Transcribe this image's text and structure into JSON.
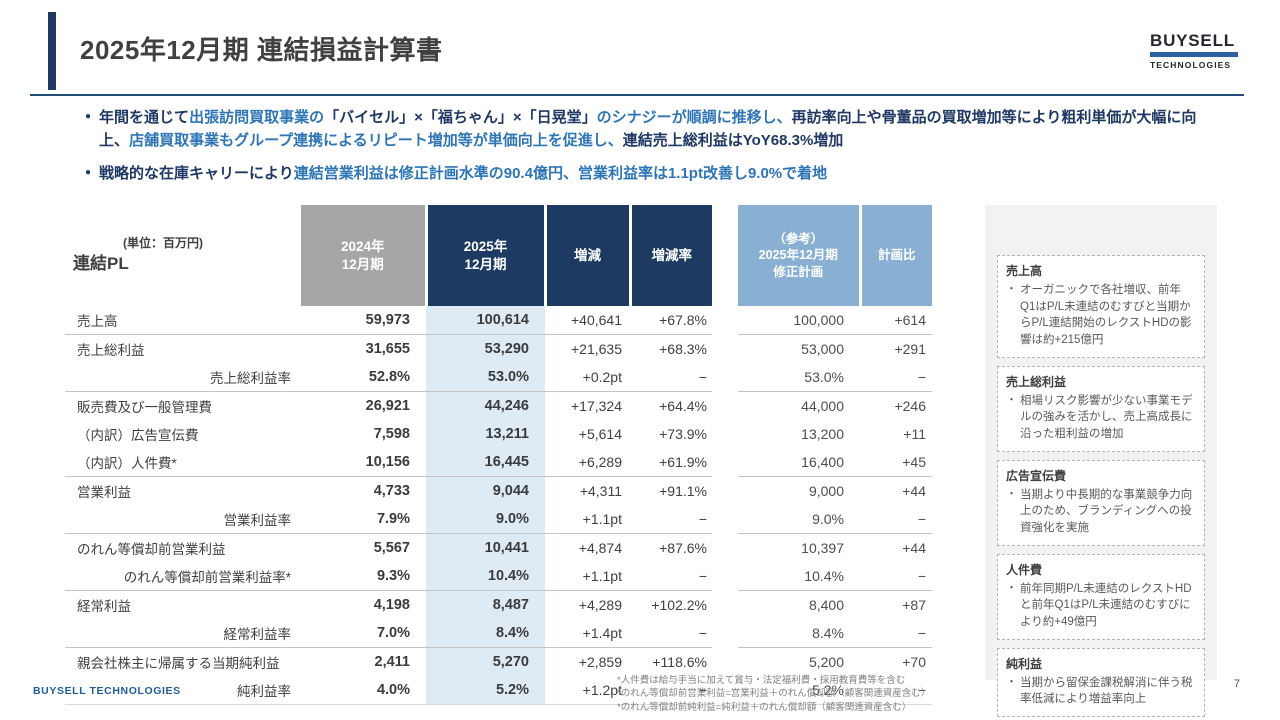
{
  "page": {
    "title": "2025年12月期 連結損益計算書",
    "footer_brand": "BUYSELL TECHNOLOGIES",
    "page_number": "7"
  },
  "logo": {
    "line1": "BUYSELL",
    "line2": "TECHNOLOGIES"
  },
  "bullets": [
    {
      "segments": [
        {
          "t": "年間を通じて",
          "c": "navy"
        },
        {
          "t": "出張訪問買取事業の",
          "c": "blue"
        },
        {
          "t": "「バイセル」×「福ちゃん」×「日晃堂」",
          "c": "navy"
        },
        {
          "t": "のシナジーが順調に推移し、",
          "c": "blue"
        },
        {
          "t": "再訪率向上や骨董品の買取増加等により粗利単価が大幅に向上、",
          "c": "navy"
        },
        {
          "t": "店舗買取事業もグループ連携によるリピート増加等が単価向上を促進し、",
          "c": "blue"
        },
        {
          "t": "連結売上総利益はYoY68.3%増加",
          "c": "navy"
        }
      ]
    },
    {
      "segments": [
        {
          "t": "戦略的な在庫キャリーにより",
          "c": "navy"
        },
        {
          "t": "連結営業利益は修正計画水準の90.4億円、営業利益率は1.1pt改善し9.0%で着地",
          "c": "blue"
        }
      ]
    }
  ],
  "table": {
    "unit_label": "(単位：百万円)",
    "title": "連結PL",
    "columns": [
      "2024年\n12月期",
      "2025年\n12月期",
      "増減",
      "増減率",
      "（参考）\n2025年12月期\n修正計画",
      "計画比"
    ],
    "rows": [
      {
        "label": "売上高",
        "type": "main",
        "divider": false,
        "values": [
          "59,973",
          "100,614",
          "+40,641",
          "+67.8%",
          "100,000",
          "+614"
        ]
      },
      {
        "label": "売上総利益",
        "type": "main",
        "divider": true,
        "values": [
          "31,655",
          "53,290",
          "+21,635",
          "+68.3%",
          "53,000",
          "+291"
        ]
      },
      {
        "label": "売上総利益率",
        "type": "rate",
        "divider": false,
        "values": [
          "52.8%",
          "53.0%",
          "+0.2pt",
          "−",
          "53.0%",
          "−"
        ]
      },
      {
        "label": "販売費及び一般管理費",
        "type": "main",
        "divider": true,
        "values": [
          "26,921",
          "44,246",
          "+17,324",
          "+64.4%",
          "44,000",
          "+246"
        ]
      },
      {
        "label": "（内訳）広告宣伝費",
        "type": "detail",
        "divider": false,
        "values": [
          "7,598",
          "13,211",
          "+5,614",
          "+73.9%",
          "13,200",
          "+11"
        ]
      },
      {
        "label": "（内訳）人件費*",
        "type": "detail",
        "divider": false,
        "values": [
          "10,156",
          "16,445",
          "+6,289",
          "+61.9%",
          "16,400",
          "+45"
        ]
      },
      {
        "label": "営業利益",
        "type": "main",
        "divider": true,
        "values": [
          "4,733",
          "9,044",
          "+4,311",
          "+91.1%",
          "9,000",
          "+44"
        ]
      },
      {
        "label": "営業利益率",
        "type": "rate",
        "divider": false,
        "values": [
          "7.9%",
          "9.0%",
          "+1.1pt",
          "−",
          "9.0%",
          "−"
        ]
      },
      {
        "label": "のれん等償却前営業利益",
        "type": "main",
        "divider": true,
        "values": [
          "5,567",
          "10,441",
          "+4,874",
          "+87.6%",
          "10,397",
          "+44"
        ]
      },
      {
        "label": "のれん等償却前営業利益率*",
        "type": "rate",
        "divider": false,
        "values": [
          "9.3%",
          "10.4%",
          "+1.1pt",
          "−",
          "10.4%",
          "−"
        ]
      },
      {
        "label": "経常利益",
        "type": "main",
        "divider": true,
        "values": [
          "4,198",
          "8,487",
          "+4,289",
          "+102.2%",
          "8,400",
          "+87"
        ]
      },
      {
        "label": "経常利益率",
        "type": "rate",
        "divider": false,
        "values": [
          "7.0%",
          "8.4%",
          "+1.4pt",
          "−",
          "8.4%",
          "−"
        ]
      },
      {
        "label": "親会社株主に帰属する当期純利益",
        "type": "main",
        "divider": true,
        "values": [
          "2,411",
          "5,270",
          "+2,859",
          "+118.6%",
          "5,200",
          "+70"
        ]
      },
      {
        "label": "純利益率",
        "type": "rate",
        "divider": false,
        "values": [
          "4.0%",
          "5.2%",
          "+1.2pt",
          "−",
          "5.2%",
          "−"
        ]
      }
    ]
  },
  "sidebar": {
    "boxes": [
      {
        "title": "売上高",
        "body": "オーガニックで各社増収、前年Q1はP/L未連結のむすびと当期からP/L連結開始のレクストHDの影響は約+215億円"
      },
      {
        "title": "売上総利益",
        "body": "相場リスク影響が少ない事業モデルの強みを活かし、売上高成長に沿った粗利益の増加"
      },
      {
        "title": "広告宣伝費",
        "body": "当期より中長期的な事業競争力向上のため、ブランディングへの投資強化を実施"
      },
      {
        "title": "人件費",
        "body": "前年同期P/L未連結のレクストHDと前年Q1はP/L未連結のむすびにより約+49億円"
      },
      {
        "title": "純利益",
        "body": "当期から留保金課税解消に伴う税率低減により増益率向上"
      }
    ]
  },
  "footnotes": [
    "*人件費は給与手当に加えて賞与・法定福利費・採用教育費等を含む",
    "*のれん等償却前営業利益=営業利益＋のれん償却額（顧客関連資産含む）",
    "*のれん等償却前純利益=純利益＋のれん償却額（顧客関連資産含む）"
  ],
  "colors": {
    "navy": "#1F3864",
    "blue": "#2E75B6",
    "header_gray": "#A6A6A6",
    "header_navy": "#1d3a63",
    "header_lightblue": "#89B0D2",
    "column_highlight": "#DEEBF5",
    "sidebar_bg": "#F2F2F2"
  }
}
